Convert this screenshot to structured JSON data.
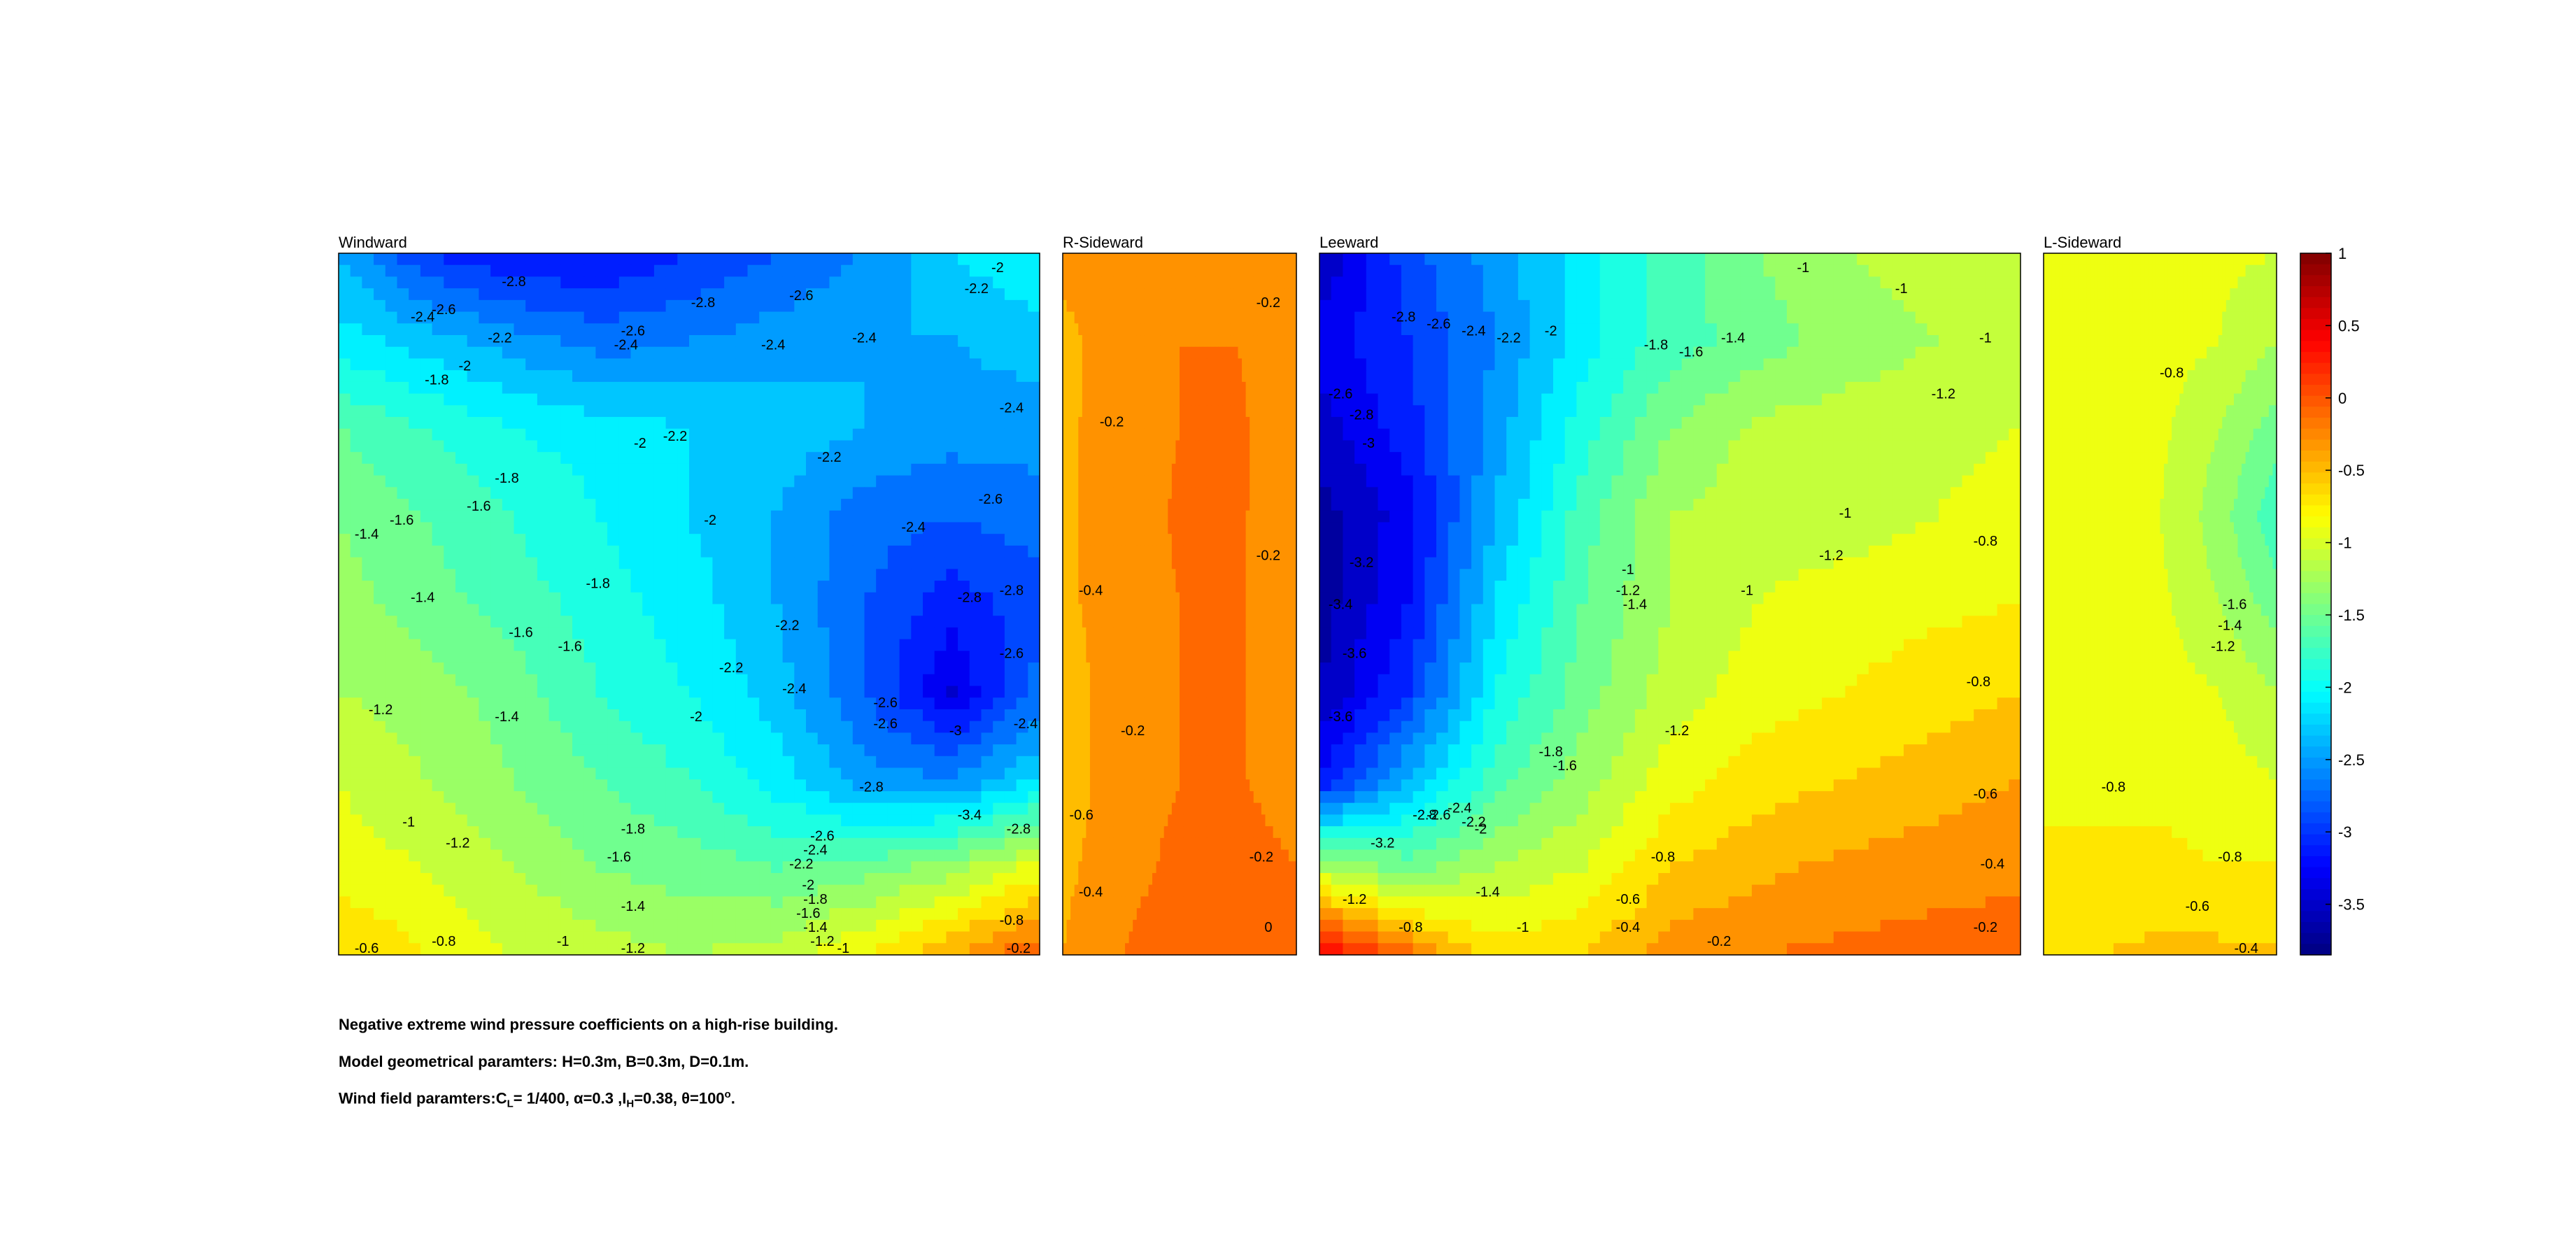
{
  "chart_data": {
    "type": "contour",
    "colormap": "jet",
    "colorbar": {
      "min": -3.85,
      "max": 1,
      "ticks": [
        "1",
        "0.5",
        "0",
        "-0.5",
        "-1",
        "-1.5",
        "-2",
        "-2.5",
        "-3",
        "-3.5"
      ],
      "tick_values": [
        1,
        0.5,
        0,
        -0.5,
        -1,
        -1.5,
        -2,
        -2.5,
        -3,
        -3.5
      ]
    },
    "panels": [
      {
        "title": "Windward",
        "grid_x": [
          0,
          1,
          2,
          3,
          4,
          5,
          6,
          7,
          8
        ],
        "grid_y": [
          0,
          1,
          2,
          3,
          4,
          5,
          6,
          7,
          8
        ],
        "values": [
          [
            -2.4,
            -3.0,
            -3.2,
            -3.2,
            -3.0,
            -2.8,
            -2.6,
            -2.2,
            -2.0
          ],
          [
            -2.1,
            -2.3,
            -2.5,
            -2.7,
            -2.6,
            -2.5,
            -2.4,
            -2.4,
            -2.3
          ],
          [
            -1.6,
            -1.8,
            -2.0,
            -2.1,
            -2.2,
            -2.3,
            -2.4,
            -2.5,
            -2.5
          ],
          [
            -1.4,
            -1.6,
            -1.8,
            -2.0,
            -2.2,
            -2.4,
            -2.7,
            -2.8,
            -2.7
          ],
          [
            -1.3,
            -1.5,
            -1.7,
            -1.9,
            -2.1,
            -2.4,
            -2.8,
            -3.1,
            -2.9
          ],
          [
            -1.2,
            -1.3,
            -1.5,
            -1.8,
            -2.0,
            -2.3,
            -2.8,
            -3.4,
            -2.7
          ],
          [
            -1.0,
            -1.2,
            -1.4,
            -1.6,
            -1.8,
            -2.1,
            -2.5,
            -2.6,
            -2.2
          ],
          [
            -0.9,
            -1.0,
            -1.2,
            -1.4,
            -1.5,
            -1.6,
            -1.5,
            -1.3,
            -0.9
          ],
          [
            -0.6,
            -0.8,
            -1.0,
            -1.1,
            -1.2,
            -1.1,
            -0.8,
            -0.4,
            0.0
          ]
        ]
      },
      {
        "title": "R-Sideward",
        "grid_x": [
          0,
          1,
          2,
          3,
          4
        ],
        "grid_y": [
          0,
          1,
          2,
          3,
          4,
          5,
          6,
          7,
          8
        ],
        "values": [
          [
            -0.35,
            -0.25,
            -0.2,
            -0.2,
            -0.25
          ],
          [
            -0.45,
            -0.3,
            -0.2,
            -0.2,
            -0.28
          ],
          [
            -0.45,
            -0.28,
            -0.2,
            -0.18,
            -0.28
          ],
          [
            -0.45,
            -0.28,
            -0.18,
            -0.18,
            -0.3
          ],
          [
            -0.45,
            -0.28,
            -0.2,
            -0.18,
            -0.3
          ],
          [
            -0.5,
            -0.3,
            -0.2,
            -0.18,
            -0.3
          ],
          [
            -0.5,
            -0.3,
            -0.2,
            -0.18,
            -0.3
          ],
          [
            -0.45,
            -0.28,
            -0.15,
            -0.12,
            -0.2
          ],
          [
            -0.4,
            -0.2,
            -0.05,
            0.0,
            -0.1
          ]
        ]
      },
      {
        "title": "Leeward",
        "grid_x": [
          0,
          1,
          2,
          3,
          4,
          5,
          6,
          7,
          8
        ],
        "grid_y": [
          0,
          1,
          2,
          3,
          4,
          5,
          6,
          7,
          8
        ],
        "values": [
          [
            -3.6,
            -2.9,
            -2.5,
            -2.1,
            -1.7,
            -1.4,
            -1.2,
            -1.1,
            -1.0
          ],
          [
            -3.3,
            -3.0,
            -2.6,
            -2.1,
            -1.7,
            -1.5,
            -1.3,
            -1.2,
            -1.1
          ],
          [
            -3.5,
            -3.1,
            -2.5,
            -1.9,
            -1.4,
            -1.15,
            -1.1,
            -1.1,
            -1.0
          ],
          [
            -3.7,
            -3.3,
            -2.4,
            -1.7,
            -1.2,
            -1.1,
            -1.1,
            -1.0,
            -0.85
          ],
          [
            -3.7,
            -3.2,
            -2.2,
            -1.6,
            -1.2,
            -1.0,
            -0.9,
            -0.85,
            -0.8
          ],
          [
            -3.6,
            -3.0,
            -2.0,
            -1.5,
            -1.1,
            -0.9,
            -0.8,
            -0.7,
            -0.6
          ],
          [
            -3.2,
            -2.4,
            -1.7,
            -1.3,
            -0.9,
            -0.7,
            -0.6,
            -0.5,
            -0.4
          ],
          [
            -1.2,
            -1.5,
            -1.2,
            -1.0,
            -0.6,
            -0.45,
            -0.35,
            -0.3,
            -0.25
          ],
          [
            0.5,
            -0.1,
            -0.7,
            -0.6,
            -0.3,
            -0.2,
            -0.15,
            -0.1,
            -0.1
          ]
        ]
      },
      {
        "title": "L-Sideward",
        "grid_x": [
          0,
          1,
          2,
          3,
          4
        ],
        "grid_y": [
          0,
          1,
          2,
          3,
          4,
          5,
          6,
          7,
          8
        ],
        "values": [
          [
            -0.9,
            -0.9,
            -0.9,
            -0.95,
            -1.0
          ],
          [
            -0.9,
            -0.85,
            -0.9,
            -1.0,
            -1.2
          ],
          [
            -0.9,
            -0.9,
            -0.95,
            -1.2,
            -1.5
          ],
          [
            -0.85,
            -0.9,
            -1.0,
            -1.3,
            -1.75
          ],
          [
            -0.85,
            -0.85,
            -0.95,
            -1.2,
            -1.5
          ],
          [
            -0.85,
            -0.85,
            -0.9,
            -1.0,
            -1.2
          ],
          [
            -0.85,
            -0.85,
            -0.85,
            -0.9,
            -1.0
          ],
          [
            -0.75,
            -0.75,
            -0.75,
            -0.8,
            -0.8
          ],
          [
            -0.6,
            -0.6,
            -0.55,
            -0.55,
            -0.55
          ]
        ]
      }
    ],
    "contour_labels": [
      {
        "panel": 0,
        "t": "-2.8",
        "x": 0.25,
        "y": 0.04
      },
      {
        "panel": 0,
        "t": "-2.6",
        "x": 0.15,
        "y": 0.08
      },
      {
        "panel": 0,
        "t": "-2.4",
        "x": 0.12,
        "y": 0.09
      },
      {
        "panel": 0,
        "t": "-2.8",
        "x": 0.52,
        "y": 0.07
      },
      {
        "panel": 0,
        "t": "-2.6",
        "x": 0.66,
        "y": 0.06
      },
      {
        "panel": 0,
        "t": "-2.2",
        "x": 0.91,
        "y": 0.05
      },
      {
        "panel": 0,
        "t": "-2",
        "x": 0.94,
        "y": 0.02
      },
      {
        "panel": 0,
        "t": "-2.2",
        "x": 0.23,
        "y": 0.12
      },
      {
        "panel": 0,
        "t": "-2.6",
        "x": 0.42,
        "y": 0.11
      },
      {
        "panel": 0,
        "t": "-2.4",
        "x": 0.41,
        "y": 0.13
      },
      {
        "panel": 0,
        "t": "-2.4",
        "x": 0.62,
        "y": 0.13
      },
      {
        "panel": 0,
        "t": "-2.4",
        "x": 0.75,
        "y": 0.12
      },
      {
        "panel": 0,
        "t": "-2",
        "x": 0.18,
        "y": 0.16
      },
      {
        "panel": 0,
        "t": "-1.8",
        "x": 0.14,
        "y": 0.18
      },
      {
        "panel": 0,
        "t": "-2.4",
        "x": 0.96,
        "y": 0.22
      },
      {
        "panel": 0,
        "t": "-2",
        "x": 0.43,
        "y": 0.27
      },
      {
        "panel": 0,
        "t": "-2.2",
        "x": 0.48,
        "y": 0.26
      },
      {
        "panel": 0,
        "t": "-2.2",
        "x": 0.7,
        "y": 0.29
      },
      {
        "panel": 0,
        "t": "-1.8",
        "x": 0.24,
        "y": 0.32
      },
      {
        "panel": 0,
        "t": "-1.6",
        "x": 0.2,
        "y": 0.36
      },
      {
        "panel": 0,
        "t": "-1.6",
        "x": 0.09,
        "y": 0.38
      },
      {
        "panel": 0,
        "t": "-1.4",
        "x": 0.04,
        "y": 0.4
      },
      {
        "panel": 0,
        "t": "-2",
        "x": 0.53,
        "y": 0.38
      },
      {
        "panel": 0,
        "t": "-2.4",
        "x": 0.82,
        "y": 0.39
      },
      {
        "panel": 0,
        "t": "-2.6",
        "x": 0.93,
        "y": 0.35
      },
      {
        "panel": 0,
        "t": "-1.8",
        "x": 0.37,
        "y": 0.47
      },
      {
        "panel": 0,
        "t": "-1.4",
        "x": 0.12,
        "y": 0.49
      },
      {
        "panel": 0,
        "t": "-2.8",
        "x": 0.9,
        "y": 0.49
      },
      {
        "panel": 0,
        "t": "-2.8",
        "x": 0.96,
        "y": 0.48
      },
      {
        "panel": 0,
        "t": "-1.6",
        "x": 0.26,
        "y": 0.54
      },
      {
        "panel": 0,
        "t": "-1.6",
        "x": 0.33,
        "y": 0.56
      },
      {
        "panel": 0,
        "t": "-2.2",
        "x": 0.64,
        "y": 0.53
      },
      {
        "panel": 0,
        "t": "-2.6",
        "x": 0.96,
        "y": 0.57
      },
      {
        "panel": 0,
        "t": "-2.2",
        "x": 0.56,
        "y": 0.59
      },
      {
        "panel": 0,
        "t": "-2.4",
        "x": 0.65,
        "y": 0.62
      },
      {
        "panel": 0,
        "t": "-2.6",
        "x": 0.78,
        "y": 0.64
      },
      {
        "panel": 0,
        "t": "-1.2",
        "x": 0.06,
        "y": 0.65
      },
      {
        "panel": 0,
        "t": "-1.4",
        "x": 0.24,
        "y": 0.66
      },
      {
        "panel": 0,
        "t": "-2",
        "x": 0.51,
        "y": 0.66
      },
      {
        "panel": 0,
        "t": "-2.6",
        "x": 0.78,
        "y": 0.67
      },
      {
        "panel": 0,
        "t": "-3",
        "x": 0.88,
        "y": 0.68
      },
      {
        "panel": 0,
        "t": "-2.4",
        "x": 0.98,
        "y": 0.67
      },
      {
        "panel": 0,
        "t": "-2.8",
        "x": 0.76,
        "y": 0.76
      },
      {
        "panel": 0,
        "t": "-3.4",
        "x": 0.9,
        "y": 0.8
      },
      {
        "panel": 0,
        "t": "-2.8",
        "x": 0.97,
        "y": 0.82
      },
      {
        "panel": 0,
        "t": "-1.8",
        "x": 0.42,
        "y": 0.82
      },
      {
        "panel": 0,
        "t": "-1",
        "x": 0.1,
        "y": 0.81
      },
      {
        "panel": 0,
        "t": "-1.2",
        "x": 0.17,
        "y": 0.84
      },
      {
        "panel": 0,
        "t": "-2.6",
        "x": 0.69,
        "y": 0.83
      },
      {
        "panel": 0,
        "t": "-2.4",
        "x": 0.68,
        "y": 0.85
      },
      {
        "panel": 0,
        "t": "-2.2",
        "x": 0.66,
        "y": 0.87
      },
      {
        "panel": 0,
        "t": "-2",
        "x": 0.67,
        "y": 0.9
      },
      {
        "panel": 0,
        "t": "-1.6",
        "x": 0.4,
        "y": 0.86
      },
      {
        "panel": 0,
        "t": "-1.8",
        "x": 0.68,
        "y": 0.92
      },
      {
        "panel": 0,
        "t": "-1.6",
        "x": 0.67,
        "y": 0.94
      },
      {
        "panel": 0,
        "t": "-1.4",
        "x": 0.42,
        "y": 0.93
      },
      {
        "panel": 0,
        "t": "-1.4",
        "x": 0.68,
        "y": 0.96
      },
      {
        "panel": 0,
        "t": "-1.2",
        "x": 0.69,
        "y": 0.98
      },
      {
        "panel": 0,
        "t": "-0.8",
        "x": 0.15,
        "y": 0.98
      },
      {
        "panel": 0,
        "t": "-0.6",
        "x": 0.04,
        "y": 0.99
      },
      {
        "panel": 0,
        "t": "-1",
        "x": 0.32,
        "y": 0.98
      },
      {
        "panel": 0,
        "t": "-1.2",
        "x": 0.42,
        "y": 0.99
      },
      {
        "panel": 0,
        "t": "-1",
        "x": 0.72,
        "y": 0.99
      },
      {
        "panel": 0,
        "t": "-0.8",
        "x": 0.96,
        "y": 0.95
      },
      {
        "panel": 0,
        "t": "-0.2",
        "x": 0.97,
        "y": 0.99
      },
      {
        "panel": 1,
        "t": "-0.2",
        "x": 0.88,
        "y": 0.07
      },
      {
        "panel": 1,
        "t": "-0.2",
        "x": 0.21,
        "y": 0.24
      },
      {
        "panel": 1,
        "t": "-0.2",
        "x": 0.88,
        "y": 0.43
      },
      {
        "panel": 1,
        "t": "-0.4",
        "x": 0.12,
        "y": 0.48
      },
      {
        "panel": 1,
        "t": "-0.2",
        "x": 0.3,
        "y": 0.68
      },
      {
        "panel": 1,
        "t": "-0.6",
        "x": 0.08,
        "y": 0.8
      },
      {
        "panel": 1,
        "t": "-0.2",
        "x": 0.85,
        "y": 0.86
      },
      {
        "panel": 1,
        "t": "-0.4",
        "x": 0.12,
        "y": 0.91
      },
      {
        "panel": 1,
        "t": "0",
        "x": 0.88,
        "y": 0.96
      },
      {
        "panel": 2,
        "t": "-2.8",
        "x": 0.12,
        "y": 0.09
      },
      {
        "panel": 2,
        "t": "-2.6",
        "x": 0.17,
        "y": 0.1
      },
      {
        "panel": 2,
        "t": "-2.4",
        "x": 0.22,
        "y": 0.11
      },
      {
        "panel": 2,
        "t": "-2.2",
        "x": 0.27,
        "y": 0.12
      },
      {
        "panel": 2,
        "t": "-2",
        "x": 0.33,
        "y": 0.11
      },
      {
        "panel": 2,
        "t": "-1.8",
        "x": 0.48,
        "y": 0.13
      },
      {
        "panel": 2,
        "t": "-1.6",
        "x": 0.53,
        "y": 0.14
      },
      {
        "panel": 2,
        "t": "-1.4",
        "x": 0.59,
        "y": 0.12
      },
      {
        "panel": 2,
        "t": "-1",
        "x": 0.69,
        "y": 0.02
      },
      {
        "panel": 2,
        "t": "-1",
        "x": 0.83,
        "y": 0.05
      },
      {
        "panel": 2,
        "t": "-1",
        "x": 0.95,
        "y": 0.12
      },
      {
        "panel": 2,
        "t": "-1.2",
        "x": 0.89,
        "y": 0.2
      },
      {
        "panel": 2,
        "t": "-2.6",
        "x": 0.03,
        "y": 0.2
      },
      {
        "panel": 2,
        "t": "-2.8",
        "x": 0.06,
        "y": 0.23
      },
      {
        "panel": 2,
        "t": "-3",
        "x": 0.07,
        "y": 0.27
      },
      {
        "panel": 2,
        "t": "-3.2",
        "x": 0.06,
        "y": 0.44
      },
      {
        "panel": 2,
        "t": "-3.4",
        "x": 0.03,
        "y": 0.5
      },
      {
        "panel": 2,
        "t": "-3.6",
        "x": 0.05,
        "y": 0.57
      },
      {
        "panel": 2,
        "t": "-3.6",
        "x": 0.03,
        "y": 0.66
      },
      {
        "panel": 2,
        "t": "-1",
        "x": 0.44,
        "y": 0.45
      },
      {
        "panel": 2,
        "t": "-1.2",
        "x": 0.44,
        "y": 0.48
      },
      {
        "panel": 2,
        "t": "-1.4",
        "x": 0.45,
        "y": 0.5
      },
      {
        "panel": 2,
        "t": "-1",
        "x": 0.61,
        "y": 0.48
      },
      {
        "panel": 2,
        "t": "-1.2",
        "x": 0.73,
        "y": 0.43
      },
      {
        "panel": 2,
        "t": "-1",
        "x": 0.75,
        "y": 0.37
      },
      {
        "panel": 2,
        "t": "-0.8",
        "x": 0.95,
        "y": 0.41
      },
      {
        "panel": 2,
        "t": "-0.8",
        "x": 0.94,
        "y": 0.61
      },
      {
        "panel": 2,
        "t": "-1.2",
        "x": 0.51,
        "y": 0.68
      },
      {
        "panel": 2,
        "t": "-1.8",
        "x": 0.33,
        "y": 0.71
      },
      {
        "panel": 2,
        "t": "-1.6",
        "x": 0.35,
        "y": 0.73
      },
      {
        "panel": 2,
        "t": "-2.4",
        "x": 0.2,
        "y": 0.79
      },
      {
        "panel": 2,
        "t": "-2.2",
        "x": 0.22,
        "y": 0.81
      },
      {
        "panel": 2,
        "t": "-2",
        "x": 0.23,
        "y": 0.82
      },
      {
        "panel": 2,
        "t": "-2.8",
        "x": 0.15,
        "y": 0.8
      },
      {
        "panel": 2,
        "t": "-2.6",
        "x": 0.17,
        "y": 0.8
      },
      {
        "panel": 2,
        "t": "-3.2",
        "x": 0.09,
        "y": 0.84
      },
      {
        "panel": 2,
        "t": "-0.6",
        "x": 0.95,
        "y": 0.77
      },
      {
        "panel": 2,
        "t": "-0.4",
        "x": 0.96,
        "y": 0.87
      },
      {
        "panel": 2,
        "t": "-0.8",
        "x": 0.49,
        "y": 0.86
      },
      {
        "panel": 2,
        "t": "-1.4",
        "x": 0.24,
        "y": 0.91
      },
      {
        "panel": 2,
        "t": "-0.6",
        "x": 0.44,
        "y": 0.92
      },
      {
        "panel": 2,
        "t": "-1",
        "x": 0.29,
        "y": 0.96
      },
      {
        "panel": 2,
        "t": "-0.4",
        "x": 0.44,
        "y": 0.96
      },
      {
        "panel": 2,
        "t": "-0.2",
        "x": 0.57,
        "y": 0.98
      },
      {
        "panel": 2,
        "t": "-0.2",
        "x": 0.95,
        "y": 0.96
      },
      {
        "panel": 2,
        "t": "-1.2",
        "x": 0.05,
        "y": 0.92
      },
      {
        "panel": 2,
        "t": "-0.8",
        "x": 0.13,
        "y": 0.96
      },
      {
        "panel": 3,
        "t": "-0.8",
        "x": 0.55,
        "y": 0.17
      },
      {
        "panel": 3,
        "t": "-1.6",
        "x": 0.82,
        "y": 0.5
      },
      {
        "panel": 3,
        "t": "-1.4",
        "x": 0.8,
        "y": 0.53
      },
      {
        "panel": 3,
        "t": "-1.2",
        "x": 0.77,
        "y": 0.56
      },
      {
        "panel": 3,
        "t": "-0.8",
        "x": 0.3,
        "y": 0.76
      },
      {
        "panel": 3,
        "t": "-0.8",
        "x": 0.8,
        "y": 0.86
      },
      {
        "panel": 3,
        "t": "-0.6",
        "x": 0.66,
        "y": 0.93
      },
      {
        "panel": 3,
        "t": "-0.4",
        "x": 0.87,
        "y": 0.99
      }
    ],
    "caption": [
      "Negative extreme wind pressure coefficients on a high-rise building.",
      "Model geometrical paramters: H=0.3m, B=0.3m, D=0.1m.",
      "Wind field paramters:"
    ],
    "caption_params": {
      "c_symbol": "C",
      "c_sub": "L",
      "c_val": "= 1/400, ",
      "alpha": "α=0.3 ,",
      "i_symbol": "I",
      "i_sub": "H",
      "i_val": "=0.38, ",
      "theta": "θ=100",
      "theta_sup": "o",
      "end": "."
    }
  }
}
